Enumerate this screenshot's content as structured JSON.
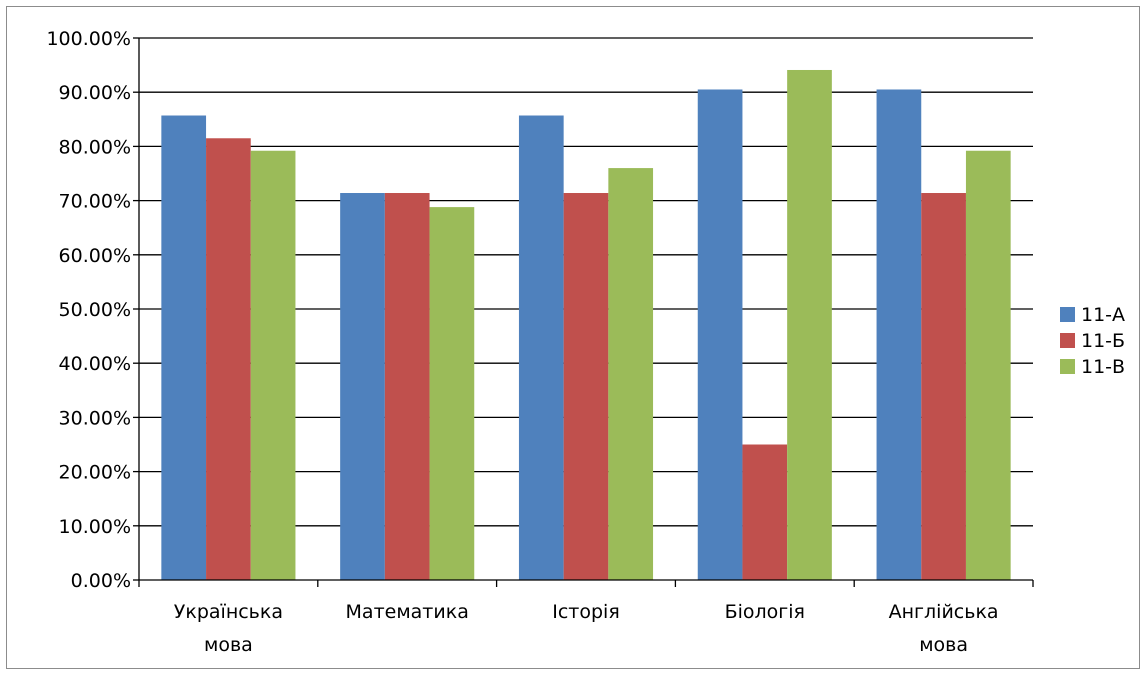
{
  "chart_data": {
    "type": "bar",
    "title": "",
    "xlabel": "",
    "ylabel": "",
    "categories": [
      [
        "Українська",
        "мова"
      ],
      [
        "Математика"
      ],
      [
        "Історія"
      ],
      [
        "Біологія"
      ],
      [
        "Англійська",
        "мова"
      ]
    ],
    "series": [
      {
        "name": "11-А",
        "color": "#4f81bd",
        "values": [
          85.7,
          71.4,
          85.7,
          90.5,
          90.5
        ]
      },
      {
        "name": "11-Б",
        "color": "#c0504d",
        "values": [
          81.5,
          71.4,
          71.4,
          25.0,
          71.4
        ]
      },
      {
        "name": "11-В",
        "color": "#9bbb59",
        "values": [
          79.2,
          68.8,
          76.0,
          94.1,
          79.2
        ]
      }
    ],
    "ylim": [
      0,
      100
    ],
    "ytick_step": 10,
    "ytick_labels": [
      "0.00%",
      "10.00%",
      "20.00%",
      "30.00%",
      "40.00%",
      "50.00%",
      "60.00%",
      "70.00%",
      "80.00%",
      "90.00%",
      "100.00%"
    ],
    "grid": true,
    "legend_position": "right"
  }
}
